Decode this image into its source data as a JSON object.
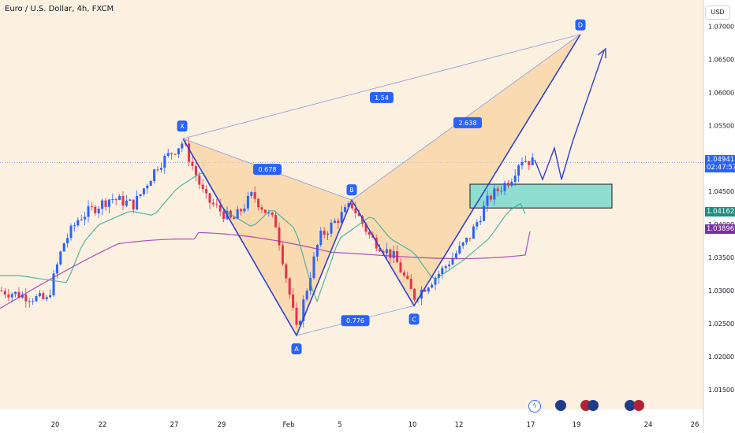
{
  "header": {
    "title": "Euro / U.S. Dollar, 4h, FXCM"
  },
  "currency_button": "USD",
  "price_tags": {
    "last_price": "1.04941",
    "countdown": "02:47:57",
    "ema_fast": "1.04162",
    "ema_slow": "1.03896"
  },
  "colors": {
    "bg_fill": "#fcf1e0",
    "up": "#2962ff",
    "down": "#e5324a",
    "pattern_line": "#2f3fd4",
    "pattern_fill": "#f7c98a",
    "ema_fast": "#26a69a",
    "ema_slow": "#9c27b0",
    "zone": "#8fdcd0"
  },
  "pattern_labels": {
    "X": "X",
    "A": "A",
    "B": "B",
    "C": "C",
    "D": "D",
    "r_xb": "0.678",
    "r_ac": "0.776",
    "r_bd": "2.638",
    "r_xd": "1.54"
  },
  "events": {
    "flash": "ϟ",
    "us": "US"
  },
  "chart_data": {
    "type": "candlestick",
    "title": "Euro / U.S. Dollar, 4h, FXCM",
    "y_ticks": [
      "1.07000",
      "1.06500",
      "1.06000",
      "1.05500",
      "1.05000",
      "1.04500",
      "1.04000",
      "1.03500",
      "1.03000",
      "1.02500",
      "1.02000",
      "1.01500"
    ],
    "ylim": [
      1.012,
      1.074
    ],
    "x_ticks": [
      "20",
      "22",
      "27",
      "29",
      "Feb",
      "5",
      "10",
      "12",
      "17",
      "19",
      "24",
      "26"
    ],
    "current_price": 1.04941,
    "harmonic_pattern": {
      "points": {
        "X": 1.053,
        "A": 1.0232,
        "B": 1.0437,
        "C": 1.0277,
        "D": 1.0688
      },
      "ratios": {
        "XB": 0.678,
        "AC": 0.776,
        "BD": 2.638,
        "XD": 1.54
      }
    },
    "ema_fast_last": 1.04162,
    "ema_slow_last": 1.03896,
    "demand_zone": [
      1.0425,
      1.0461
    ]
  }
}
